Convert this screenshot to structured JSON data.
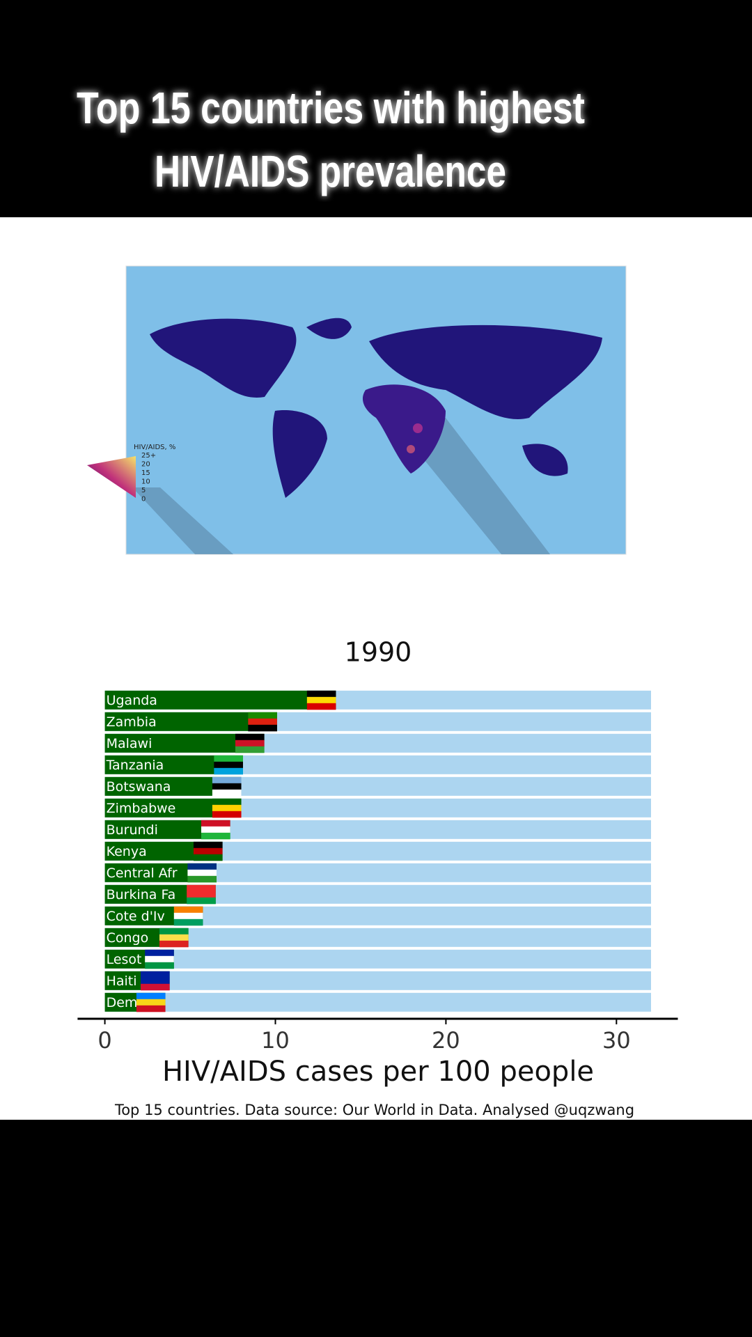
{
  "header": {
    "title": [
      "Top 15 countries with highest",
      "HIV/AIDS prevalence"
    ]
  },
  "map": {
    "legend_title": "HIV/AIDS, %",
    "legend_labels": [
      "25+",
      "20",
      "15",
      "10",
      "5",
      "0"
    ]
  },
  "chart_data": {
    "type": "bar",
    "orientation": "horizontal",
    "title": "1990",
    "categories": [
      "Uganda",
      "Zambia",
      "Malawi",
      "Tanzania",
      "Botswana",
      "Zimbabwe",
      "Burundi",
      "Kenya",
      "Central Afr",
      "Burkina Fa",
      "Cote d'Iv",
      "Congo",
      "Lesot",
      "Haiti",
      "Dem"
    ],
    "values": [
      13.55,
      10.1,
      9.35,
      8.1,
      8.0,
      8.0,
      7.35,
      6.9,
      6.55,
      6.5,
      5.75,
      4.9,
      4.05,
      3.8,
      3.55
    ],
    "color": "#006400",
    "track_color": "#acd5f0",
    "xlim": [
      -1.6,
      33.6
    ],
    "xticks": [
      0,
      10,
      20,
      30
    ],
    "xlabel": "HIV/AIDS cases per 100 people",
    "caption": "Top 15 countries. Data source: Our World in Data. Analysed @uqzwang"
  }
}
